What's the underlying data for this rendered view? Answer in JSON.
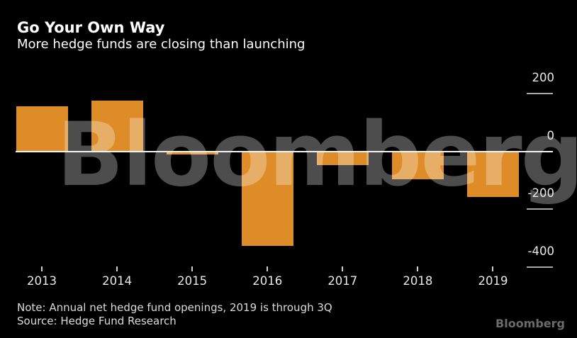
{
  "header": {
    "title": "Go Your Own Way",
    "subtitle": "More hedge funds are closing than launching"
  },
  "chart_data": {
    "type": "bar",
    "categories": [
      "2013",
      "2014",
      "2015",
      "2016",
      "2017",
      "2018",
      "2019"
    ],
    "values": [
      156,
      176,
      -11,
      -328,
      -49,
      -98,
      -158
    ],
    "title": "Go Your Own Way",
    "subtitle": "More hedge funds are closing than launching",
    "xlabel": "",
    "ylabel": "",
    "y_ticks": [
      200,
      0,
      -200,
      -400
    ],
    "ylim": [
      -450,
      250
    ],
    "grid": "zero-line-only",
    "axis_side": "right",
    "legend": "none"
  },
  "watermark": {
    "text": "Bloomberg"
  },
  "footer": {
    "note": "Note: Annual net hedge fund openings, 2019 is through 3Q",
    "source": "Source: Hedge Fund Research",
    "logo": "Bloomberg"
  },
  "colors": {
    "background": "#000000",
    "bar": "#dd8c28",
    "title_text": "#ffffff",
    "axis_text": "#e8e8e8",
    "zero_line": "#f5f5f5",
    "y_tick": "#a8a8a8",
    "x_tick": "#cfcfcf",
    "watermark": "rgba(255,255,255,0.30)",
    "footer_text": "#dcdcdc",
    "logo_text": "#6b6b6b"
  }
}
